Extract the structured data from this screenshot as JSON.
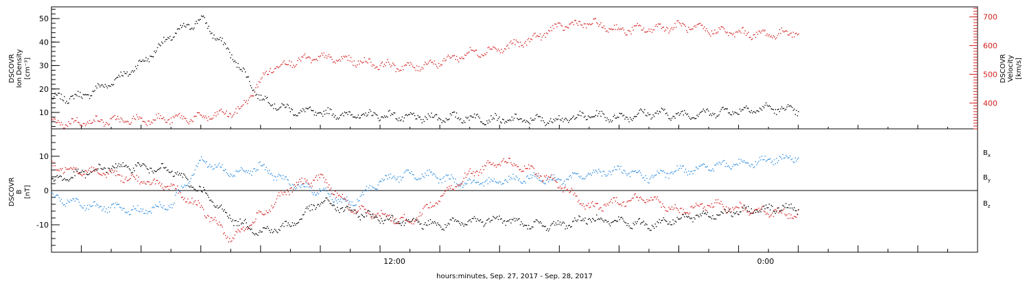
{
  "chart_data": [
    {
      "type": "scatter",
      "title": "",
      "y_axes": [
        {
          "side": "left",
          "label_lines": [
            "DSCOVR",
            "Ion Density",
            "[cm⁻³]"
          ],
          "color": "#000000",
          "ylim": [
            3,
            55
          ],
          "ticks": [
            10,
            20,
            30,
            40,
            50
          ]
        },
        {
          "side": "right",
          "label_lines": [
            "DSCOVR",
            "Velocity",
            "[km/s]"
          ],
          "color": "#d42020",
          "ylim": [
            310,
            735
          ],
          "ticks": [
            400,
            500,
            600,
            700
          ]
        }
      ],
      "series": [
        {
          "axis": "left",
          "color": "#000000",
          "x_hours": [
            0,
            1,
            2,
            3,
            4,
            5,
            6,
            7,
            8,
            9,
            10,
            11,
            12,
            13,
            14,
            15,
            16,
            17,
            18,
            19,
            20,
            21,
            22,
            23,
            24,
            25
          ],
          "values": [
            16,
            17,
            23,
            31,
            43,
            50,
            35,
            16,
            11,
            10,
            9,
            9,
            8,
            8,
            8,
            7,
            7,
            7,
            9,
            8,
            10,
            9,
            10,
            11,
            12,
            11
          ]
        },
        {
          "axis": "right",
          "color": "#d42020",
          "x_hours": [
            0,
            1,
            2,
            3,
            4,
            5,
            5.8,
            6.3,
            6.8,
            7.3,
            8,
            9,
            10,
            11,
            12,
            13,
            14,
            15,
            16,
            17,
            18,
            19,
            20,
            21,
            22,
            23,
            24,
            25
          ],
          "values": [
            330,
            335,
            340,
            343,
            347,
            350,
            365,
            375,
            450,
            520,
            545,
            560,
            550,
            535,
            525,
            545,
            575,
            590,
            620,
            670,
            680,
            655,
            660,
            670,
            655,
            645,
            640,
            650
          ]
        }
      ]
    },
    {
      "type": "scatter",
      "title": "",
      "y_axes": [
        {
          "side": "left",
          "label_lines": [
            "DSCOVR",
            "B",
            "[nT]"
          ],
          "color": "#000000",
          "ylim": [
            -18,
            18
          ],
          "ticks": [
            -10,
            0,
            10
          ]
        }
      ],
      "zero_line": true,
      "series": [
        {
          "name": "B",
          "subscript": "x",
          "color": "#000000",
          "x_hours": [
            0,
            1,
            2,
            3,
            4,
            5,
            6,
            7,
            8,
            9,
            10,
            11,
            12,
            13,
            14,
            15,
            16,
            17,
            18,
            19,
            20,
            21,
            22,
            23,
            24,
            25
          ],
          "values": [
            3,
            5,
            7,
            7,
            6,
            0,
            -8,
            -12,
            -10,
            -3,
            -6,
            -8,
            -9,
            -10,
            -9,
            -8,
            -10,
            -10,
            -8,
            -9,
            -10,
            -8,
            -7,
            -6,
            -5,
            -5
          ]
        },
        {
          "name": "B",
          "subscript": "y",
          "color": "#2f8ee0",
          "x_hours": [
            0,
            1,
            2,
            3,
            4,
            5,
            6,
            7,
            8,
            9,
            10,
            11,
            12,
            13,
            14,
            15,
            16,
            17,
            18,
            19,
            20,
            21,
            22,
            23,
            24,
            25
          ],
          "values": [
            -2,
            -4,
            -5,
            -6,
            -4,
            9,
            5,
            7,
            2,
            0,
            -4,
            3,
            5,
            4,
            2,
            3,
            4,
            3,
            5,
            6,
            4,
            6,
            7,
            8,
            9,
            10
          ]
        },
        {
          "name": "B",
          "subscript": "z",
          "color": "#d42020",
          "x_hours": [
            0,
            1,
            2,
            3,
            4,
            5,
            6,
            7,
            8,
            9,
            10,
            11,
            12,
            13,
            14,
            15,
            16,
            17,
            18,
            19,
            20,
            21,
            22,
            23,
            24,
            25
          ],
          "values": [
            7,
            6,
            5,
            3,
            1,
            -5,
            -14,
            -7,
            1,
            4,
            -5,
            -7,
            -9,
            -2,
            5,
            9,
            6,
            2,
            -5,
            -3,
            -2,
            -6,
            -4,
            -5,
            -6,
            -7
          ]
        }
      ]
    }
  ],
  "x_axis": {
    "range_hours": [
      0,
      31
    ],
    "labels": [
      {
        "hour": 11.5,
        "text": "12:00"
      },
      {
        "hour": 23.5,
        "text": "0:00"
      }
    ],
    "xlabel": "hours:minutes, Sep. 27, 2017 - Sep. 28, 2017"
  }
}
